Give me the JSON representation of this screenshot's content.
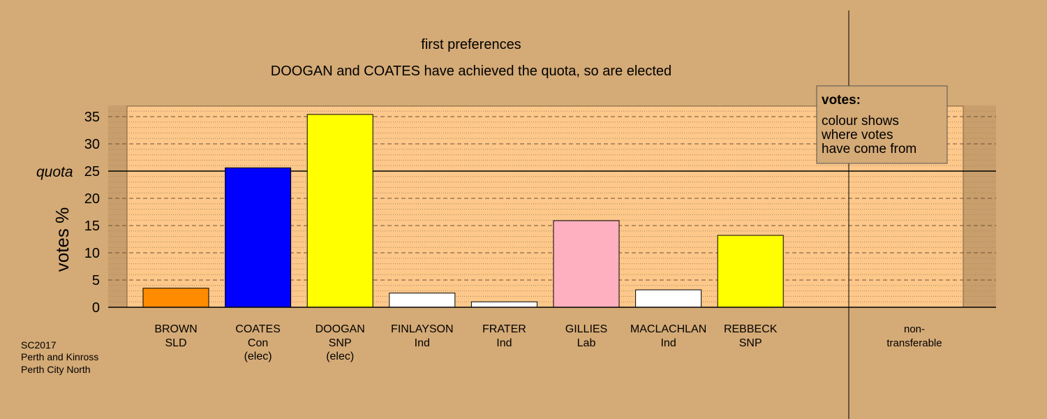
{
  "footer": {
    "lines": [
      "SC2017",
      "Perth and Kinross",
      "Perth City North"
    ]
  },
  "legend": {
    "title": "votes:",
    "lines": [
      "colour shows",
      "where votes",
      "have come from"
    ]
  },
  "colors": {
    "background": "#d4aa76",
    "plot_area": "#fdc88a",
    "quota_line": "#000000"
  },
  "chart_data": {
    "type": "bar",
    "title": "first preferences",
    "subtitle": "DOOGAN and COATES have achieved the quota, so are elected",
    "ylabel": "votes %",
    "xlabel": "",
    "ylim": [
      0,
      37
    ],
    "yticks": [
      0,
      5,
      10,
      15,
      20,
      25,
      30,
      35
    ],
    "grid": true,
    "quota": {
      "label": "quota",
      "value": 25
    },
    "categories": [
      {
        "name": "BROWN",
        "party": "SLD",
        "note": "",
        "value": 3.5,
        "color": "#ff8c00"
      },
      {
        "name": "COATES",
        "party": "Con",
        "note": "(elec)",
        "value": 25.6,
        "color": "#0000ff"
      },
      {
        "name": "DOOGAN",
        "party": "SNP",
        "note": "(elec)",
        "value": 35.4,
        "color": "#ffff00"
      },
      {
        "name": "FINLAYSON",
        "party": "Ind",
        "note": "",
        "value": 2.6,
        "color": "#ffffff"
      },
      {
        "name": "FRATER",
        "party": "Ind",
        "note": "",
        "value": 1.0,
        "color": "#ffffff"
      },
      {
        "name": "GILLIES",
        "party": "Lab",
        "note": "",
        "value": 15.9,
        "color": "#ffb0c0"
      },
      {
        "name": "MACLACHLAN",
        "party": "Ind",
        "note": "",
        "value": 3.2,
        "color": "#ffffff"
      },
      {
        "name": "REBBECK",
        "party": "SNP",
        "note": "",
        "value": 13.2,
        "color": "#ffff00"
      }
    ],
    "non_transferable": {
      "label_line1": "non-",
      "label_line2": "transferable",
      "value": 0
    }
  }
}
